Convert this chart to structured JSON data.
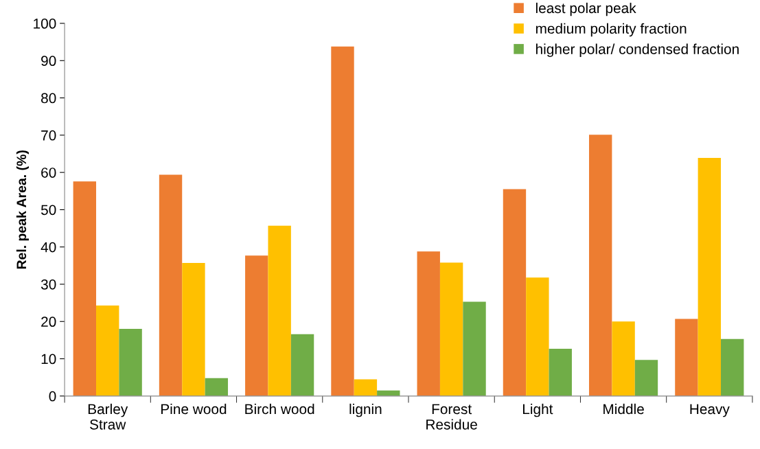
{
  "chart_data": {
    "type": "bar",
    "ylabel": "Rel. peak Area. (%)",
    "categories": [
      "Barley\nStraw",
      "Pine wood",
      "Birch wood",
      "lignin",
      "Forest\nResidue",
      "Light",
      "Middle",
      "Heavy"
    ],
    "series": [
      {
        "name": "least polar peak",
        "color": "#ed7d31",
        "values": [
          57.6,
          59.4,
          37.7,
          93.8,
          38.8,
          55.5,
          70.1,
          20.7
        ]
      },
      {
        "name": "medium polarity fraction",
        "color": "#ffc000",
        "values": [
          24.3,
          35.7,
          45.7,
          4.5,
          35.8,
          31.8,
          20.0,
          63.9
        ]
      },
      {
        "name": "higher polar/ condensed fraction",
        "color": "#70ad47",
        "values": [
          18.0,
          4.8,
          16.6,
          1.5,
          25.3,
          12.7,
          9.7,
          15.3
        ]
      }
    ],
    "ylim": [
      0,
      100
    ],
    "yticks": [
      0,
      10,
      20,
      30,
      40,
      50,
      60,
      70,
      80,
      90,
      100
    ],
    "grid": false,
    "legend": "top right"
  }
}
